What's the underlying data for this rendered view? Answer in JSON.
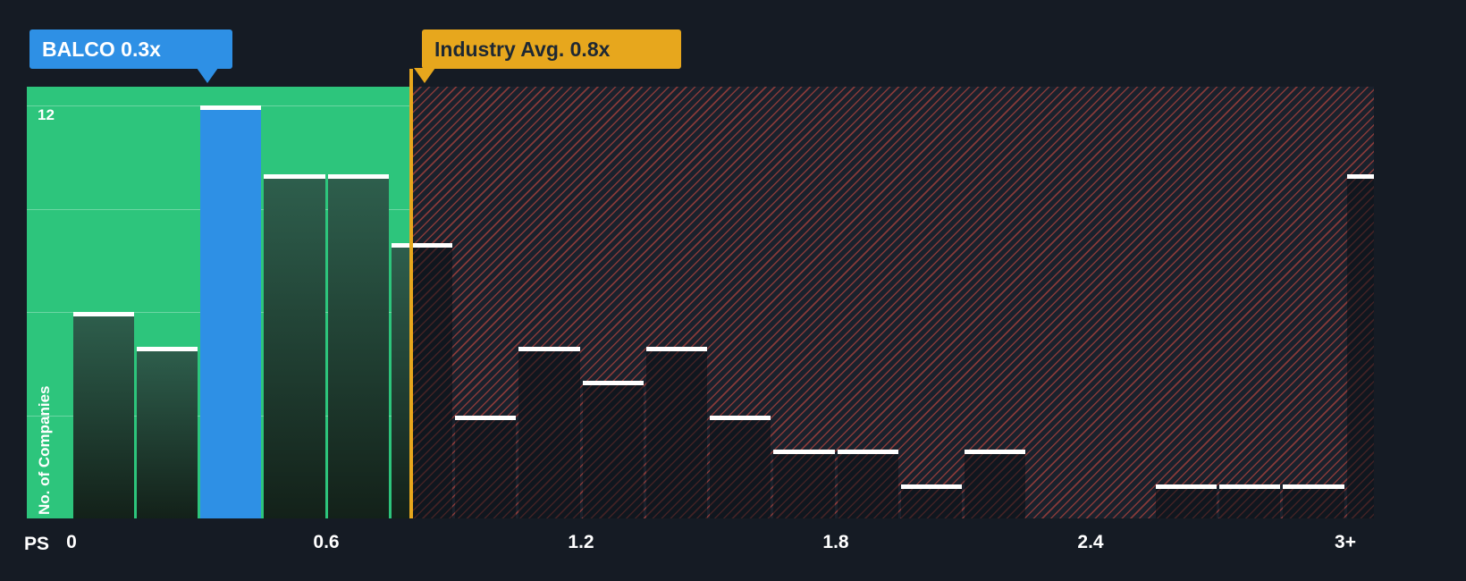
{
  "labels": {
    "company_tooltip": "BALCO 0.3x",
    "industry_tooltip": "Industry Avg. 0.8x",
    "y_axis": "No. of Companies",
    "y_tick_top": "12",
    "x_axis_prefix": "PS"
  },
  "colors": {
    "background": "#151b24",
    "green_zone": "#2dc57c",
    "company_bar": "#2e90e5",
    "industry_line": "#e7a71d",
    "hatch_line_red": "#e04f44",
    "bar_cap": "#ffffff"
  },
  "chart_data": {
    "type": "bar",
    "xlabel": "PS",
    "ylabel": "No. of Companies",
    "bin_start": 0,
    "bin_width": 0.15,
    "values": [
      6,
      5,
      12,
      10,
      10,
      8,
      3,
      5,
      4,
      5,
      3,
      2,
      2,
      1,
      2,
      0,
      0,
      1,
      1,
      1,
      10
    ],
    "x_tick_values": [
      0,
      0.6,
      1.2,
      1.8,
      2.4,
      3
    ],
    "x_tick_labels": [
      "0",
      "0.6",
      "1.2",
      "1.8",
      "2.4",
      "3+"
    ],
    "ylim": [
      0,
      12.5
    ],
    "y_gridlines": [
      3,
      6,
      9,
      12
    ],
    "y_tick_shown": {
      "value": 12,
      "label": "12"
    },
    "highlight": {
      "name": "BALCO",
      "x_value": 0.3,
      "bin_index": 2,
      "count": 12
    },
    "industry_avg": {
      "label": "Industry Avg.",
      "x_value": 0.8
    },
    "legend_position": "none",
    "grid": true
  }
}
